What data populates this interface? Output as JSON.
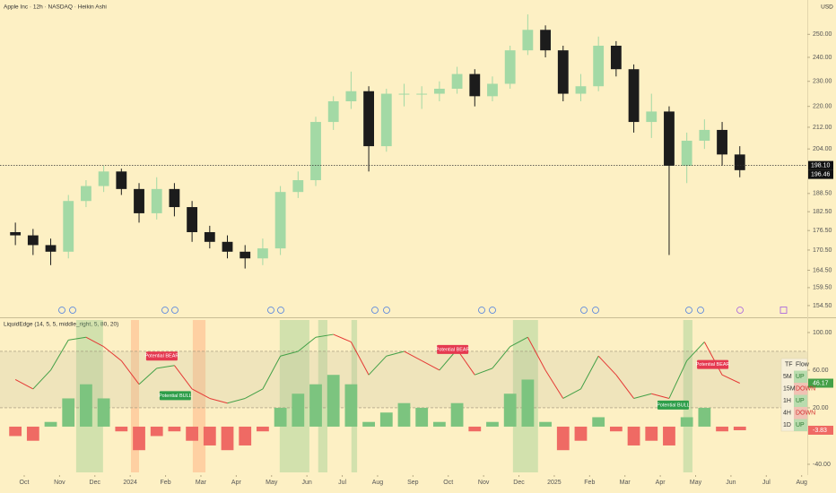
{
  "header": {
    "title": "Apple Inc · 12h · NASDAQ · Heikin Ashi",
    "currency": "USD"
  },
  "chart_data": [
    {
      "type": "candlestick",
      "x": [
        -0.25,
        0.25,
        0.75,
        1.25,
        1.75,
        2.25,
        2.75,
        3.25,
        3.75,
        4.25,
        4.75,
        5.25,
        5.75,
        6.25,
        6.75,
        7.25,
        7.75,
        8.25,
        8.75,
        9.25,
        9.75,
        10.25,
        10.75,
        11.25,
        11.75,
        12.25,
        12.75,
        13.25,
        13.75,
        14.25,
        14.75,
        15.25,
        15.75,
        16.25,
        16.75,
        17.25,
        17.75,
        18.25,
        18.75,
        19.25,
        19.75,
        20.25
      ],
      "open": [
        176,
        175,
        172,
        170,
        186,
        191,
        196,
        190,
        182,
        190,
        184,
        176,
        173,
        170,
        168,
        171,
        189,
        193,
        214,
        222,
        226,
        205,
        225,
        225,
        225,
        227,
        233,
        224,
        229,
        243,
        252,
        243,
        225,
        228,
        245,
        235,
        214,
        218,
        198,
        207,
        211,
        202
      ],
      "high": [
        179,
        177,
        174,
        188,
        193,
        198,
        197,
        192,
        194,
        192,
        186,
        178,
        175,
        172,
        174,
        191,
        196,
        216,
        224,
        234,
        228,
        227,
        229,
        228,
        230,
        236,
        235,
        232,
        245,
        259,
        254,
        245,
        233,
        249,
        247,
        237,
        225,
        220,
        210,
        215,
        214,
        205
      ],
      "low": [
        172,
        169,
        166,
        168,
        184,
        189,
        188,
        179,
        180,
        181,
        173,
        171,
        168,
        165,
        166,
        169,
        187,
        191,
        211,
        219,
        196,
        203,
        220,
        219,
        222,
        225,
        220,
        222,
        227,
        241,
        240,
        222,
        222,
        226,
        232,
        210,
        208,
        169,
        192,
        204,
        198,
        194
      ],
      "close": [
        175,
        172,
        170,
        186,
        191,
        196,
        190,
        182,
        190,
        184,
        176,
        173,
        170,
        168,
        171,
        189,
        193,
        214,
        222,
        226,
        205,
        225,
        225,
        225,
        227,
        233,
        224,
        229,
        243,
        252,
        243,
        225,
        228,
        245,
        235,
        214,
        218,
        198,
        207,
        211,
        202,
        196.46
      ],
      "up_color": "#a3d9a5",
      "down_color": "#1c1c1c",
      "xlim": [
        -0.685,
        22.16
      ],
      "ylim": [
        151.8,
        265.7
      ],
      "log_scale": true,
      "yticks": [
        {
          "value": 250,
          "label": "250.00"
        },
        {
          "value": 240,
          "label": "240.00"
        },
        {
          "value": 230,
          "label": "230.00"
        },
        {
          "value": 220,
          "label": "220.00"
        },
        {
          "value": 212,
          "label": "212.00"
        },
        {
          "value": 204,
          "label": "204.00"
        },
        {
          "value": 188.5,
          "label": "188.50"
        },
        {
          "value": 182.5,
          "label": "182.50"
        },
        {
          "value": 176.5,
          "label": "176.50"
        },
        {
          "value": 170.5,
          "label": "170.50"
        },
        {
          "value": 164.5,
          "label": "164.50"
        },
        {
          "value": 159.5,
          "label": "159.50"
        },
        {
          "value": 154.5,
          "label": "154.50"
        }
      ],
      "price_line": {
        "value": 198.1,
        "label": "198.10"
      }
    },
    {
      "type": "oscillator",
      "title": "LiquidEdge (14, 5, 5, middle_right, 5, 80, 20)",
      "x": [
        -0.25,
        0.25,
        0.75,
        1.25,
        1.75,
        2.25,
        2.75,
        3.25,
        3.75,
        4.25,
        4.75,
        5.25,
        5.75,
        6.25,
        6.75,
        7.25,
        7.75,
        8.25,
        8.75,
        9.25,
        9.75,
        10.25,
        10.75,
        11.25,
        11.75,
        12.25,
        12.75,
        13.25,
        13.75,
        14.25,
        14.75,
        15.25,
        15.75,
        16.25,
        16.75,
        17.25,
        17.75,
        18.25,
        18.75,
        19.25,
        19.75,
        20.25
      ],
      "line": {
        "values": [
          50,
          40,
          60,
          92,
          95,
          85,
          70,
          45,
          62,
          65,
          40,
          30,
          25,
          30,
          40,
          75,
          80,
          95,
          98,
          90,
          55,
          75,
          80,
          70,
          60,
          82,
          55,
          62,
          85,
          95,
          60,
          30,
          40,
          75,
          55,
          30,
          35,
          30,
          70,
          90,
          55,
          46.17
        ],
        "up_color": "#43a047",
        "down_color": "#e53935"
      },
      "histogram": {
        "values": [
          -10,
          -15,
          5,
          30,
          45,
          30,
          -5,
          -25,
          -10,
          -5,
          -15,
          -20,
          -25,
          -20,
          -5,
          20,
          35,
          45,
          55,
          45,
          5,
          15,
          25,
          20,
          5,
          25,
          -5,
          5,
          35,
          50,
          5,
          -25,
          -15,
          10,
          -5,
          -20,
          -15,
          -20,
          10,
          20,
          -5,
          -3.83
        ],
        "up_color": "#7cc47f",
        "down_color": "#ef6a64"
      },
      "levels": [
        80,
        20
      ],
      "zones": [
        {
          "x": [
            1.47,
            2.23
          ],
          "color": "rgba(129,199,132,0.35)"
        },
        {
          "x": [
            3.02,
            3.25
          ],
          "color": "rgba(255,150,100,0.35)"
        },
        {
          "x": [
            4.77,
            5.13
          ],
          "color": "rgba(255,150,100,0.35)"
        },
        {
          "x": [
            7.23,
            8.07
          ],
          "color": "rgba(129,199,132,0.35)"
        },
        {
          "x": [
            8.32,
            8.58
          ],
          "color": "rgba(129,199,132,0.35)"
        },
        {
          "x": [
            9.26,
            9.42
          ],
          "color": "rgba(129,199,132,0.35)"
        },
        {
          "x": [
            13.83,
            14.54
          ],
          "color": "rgba(129,199,132,0.35)"
        },
        {
          "x": [
            18.65,
            18.91
          ],
          "color": "rgba(129,199,132,0.35)"
        }
      ],
      "annotations": [
        {
          "text": "Potential BEAR",
          "x": 3.45,
          "y": 75,
          "color": "#e53950"
        },
        {
          "text": "Potential BULL",
          "x": 3.83,
          "y": 33,
          "color": "#2e9e4a"
        },
        {
          "text": "Potential BEAR",
          "x": 11.68,
          "y": 82,
          "color": "#e53950"
        },
        {
          "text": "Potential BEAR",
          "x": 19.04,
          "y": 66,
          "color": "#e53950"
        },
        {
          "text": "Potential BULL",
          "x": 17.92,
          "y": 23,
          "color": "#2e9e4a"
        }
      ],
      "xlim": [
        -0.685,
        22.16
      ],
      "ylim": [
        -48.6,
        113.3
      ],
      "yticks": [
        {
          "value": 100,
          "label": "100.00"
        },
        {
          "value": 60,
          "label": "60.00"
        },
        {
          "value": 20,
          "label": "20.00"
        },
        {
          "value": -40,
          "label": "-40.00"
        }
      ],
      "xticks": [
        {
          "value": 0,
          "label": "Oct"
        },
        {
          "value": 1,
          "label": "Nov"
        },
        {
          "value": 2,
          "label": "Dec"
        },
        {
          "value": 3,
          "label": "2024"
        },
        {
          "value": 4,
          "label": "Feb"
        },
        {
          "value": 5,
          "label": "Mar"
        },
        {
          "value": 6,
          "label": "Apr"
        },
        {
          "value": 7,
          "label": "May"
        },
        {
          "value": 8,
          "label": "Jun"
        },
        {
          "value": 9,
          "label": "Jul"
        },
        {
          "value": 10,
          "label": "Aug"
        },
        {
          "value": 11,
          "label": "Sep"
        },
        {
          "value": 12,
          "label": "Oct"
        },
        {
          "value": 13,
          "label": "Nov"
        },
        {
          "value": 14,
          "label": "Dec"
        },
        {
          "value": 15,
          "label": "2025"
        },
        {
          "value": 16,
          "label": "Feb"
        },
        {
          "value": 17,
          "label": "Mar"
        },
        {
          "value": 18,
          "label": "Apr"
        },
        {
          "value": 19,
          "label": "May"
        },
        {
          "value": 20,
          "label": "Jun"
        },
        {
          "value": 21,
          "label": "Jul"
        },
        {
          "value": 22,
          "label": "Aug"
        }
      ]
    }
  ],
  "flow_table": {
    "header": [
      "TF",
      "Flow"
    ],
    "rows": [
      [
        "5M",
        "UP"
      ],
      [
        "15M",
        "DOWN"
      ],
      [
        "1H",
        "UP"
      ],
      [
        "4H",
        "DOWN"
      ],
      [
        "1D",
        "UP"
      ]
    ],
    "row_colors": [
      "#b9dcae",
      "#f1c2b4",
      "#b9dcae",
      "#f1c2b4",
      "#b9dcae"
    ],
    "text_colors": [
      "#2e7d32",
      "#d32f2f",
      "#2e7d32",
      "#d32f2f",
      "#2e7d32"
    ]
  }
}
